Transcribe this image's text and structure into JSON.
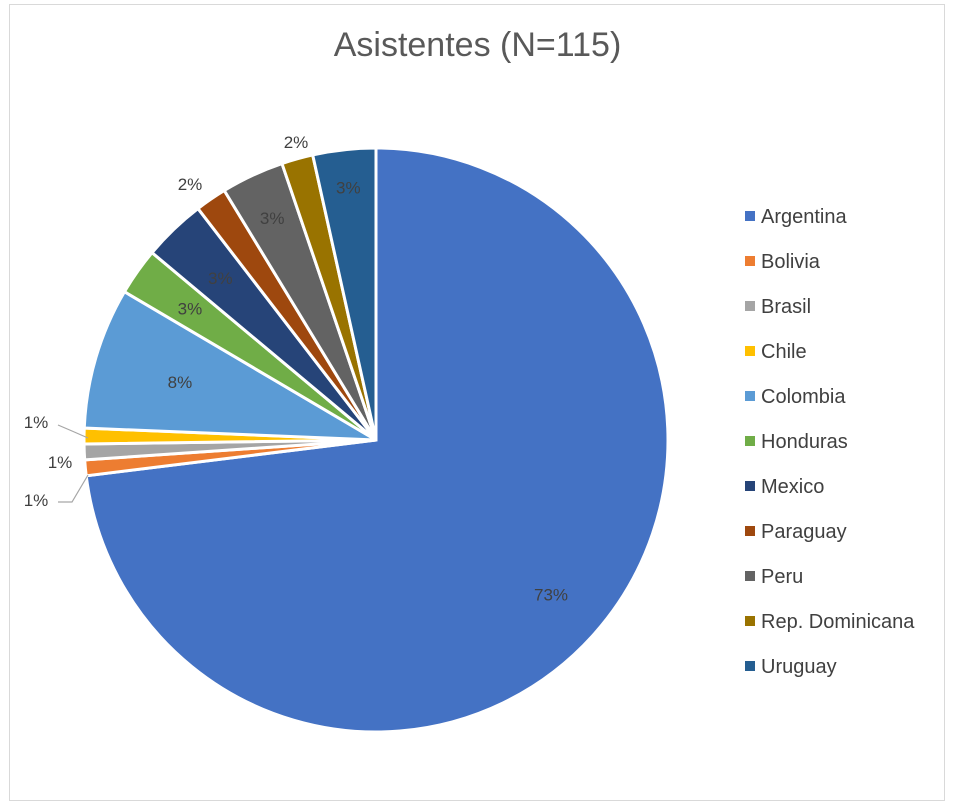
{
  "chart_data": {
    "type": "pie",
    "title": "Asistentes (N=115)",
    "categories": [
      "Argentina",
      "Bolivia",
      "Brasil",
      "Chile",
      "Colombia",
      "Honduras",
      "Mexico",
      "Paraguay",
      "Peru",
      "Rep. Dominicana",
      "Uruguay"
    ],
    "values": [
      84,
      1,
      1,
      1,
      9,
      3,
      4,
      2,
      4,
      2,
      4
    ],
    "data_labels": [
      "73%",
      "1%",
      "1%",
      "1%",
      "8%",
      "3%",
      "3%",
      "2%",
      "3%",
      "2%",
      "3%"
    ],
    "colors": [
      "#4472c4",
      "#ed7d31",
      "#a5a5a5",
      "#ffc000",
      "#5b9bd5",
      "#70ad47",
      "#264478",
      "#9e480e",
      "#636363",
      "#997300",
      "#255e91"
    ],
    "legend_position": "right",
    "start_angle": "12 o'clock, clockwise"
  }
}
